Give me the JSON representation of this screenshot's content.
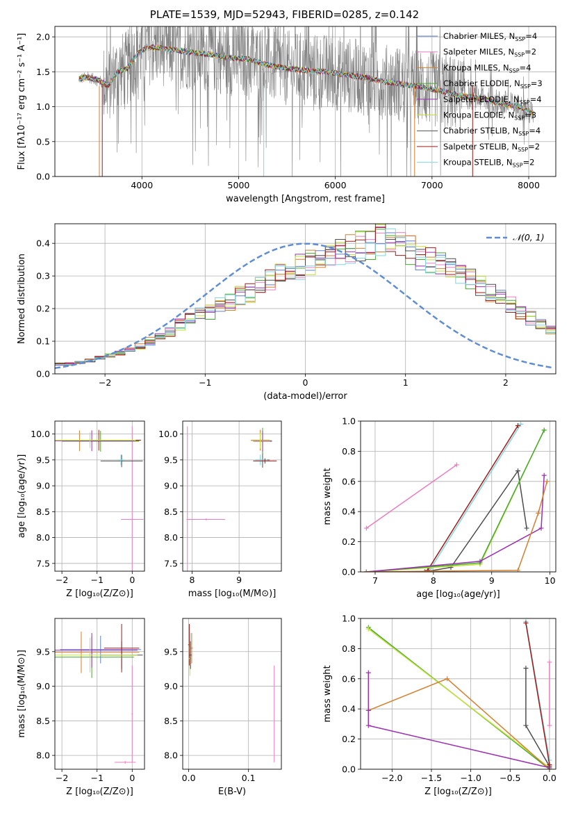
{
  "figure": {
    "title": "PLATE=1539, MJD=52943, FIBERID=0285, z=0.142"
  },
  "colors": {
    "Chabrier MILES": "#5f7fd0",
    "Salpeter MILES": "#e87fbf",
    "Kroupa MILES": "#d57f2e",
    "Chabrier ELODIE": "#44aa2e",
    "Salpeter ELODIE": "#9b2fb1",
    "Kroupa ELODIE": "#c8e03c",
    "Chabrier STELIB": "#4d4d4d",
    "Salpeter STELIB": "#a01a1a",
    "Kroupa STELIB": "#7fd6dc",
    "data": "#808080",
    "normal_curve": "#5f8dd3"
  },
  "chart_data": [
    {
      "id": "spectrum",
      "type": "line",
      "title": "PLATE=1539, MJD=52943, FIBERID=0285, z=0.142",
      "xlabel": "wavelength [Angstrom, rest frame]",
      "ylabel": "Flux [fλ10⁻¹⁷ erg cm⁻² s⁻¹ A⁻¹]",
      "xlim": [
        3100,
        8280
      ],
      "ylim": [
        0,
        2.15
      ],
      "xticks": [
        4000,
        5000,
        6000,
        7000,
        8000
      ],
      "yticks": [
        0.0,
        0.5,
        1.0,
        1.5,
        2.0
      ],
      "legend_position": "top-right",
      "legend": [
        "Chabrier MILES, N_SSP=4",
        "Salpeter MILES, N_SSP=2",
        "Kroupa MILES, N_SSP=4",
        "Chabrier ELODIE, N_SSP=3",
        "Salpeter ELODIE, N_SSP=4",
        "Kroupa ELODIE, N_SSP=3",
        "Chabrier STELIB, N_SSP=4",
        "Salpeter STELIB, N_SSP=2",
        "Kroupa STELIB, N_SSP=2"
      ],
      "model_continuum": {
        "x": [
          3350,
          3450,
          3550,
          3650,
          3750,
          3850,
          3950,
          4050,
          4150,
          4300,
          4500,
          4700,
          4900,
          5100,
          5300,
          5500,
          5700,
          5900,
          6100,
          6300,
          6500,
          6700,
          6900,
          7100,
          7300,
          7500,
          7700,
          7900,
          8050
        ],
        "y": [
          1.4,
          1.42,
          1.38,
          1.3,
          1.5,
          1.55,
          1.75,
          1.85,
          1.85,
          1.82,
          1.78,
          1.75,
          1.7,
          1.68,
          1.6,
          1.55,
          1.52,
          1.5,
          1.46,
          1.42,
          1.36,
          1.32,
          1.28,
          1.22,
          1.16,
          1.12,
          1.05,
          1.0,
          0.9
        ]
      },
      "data_x_range": [
        3350,
        8050
      ],
      "data_noise_amplitude": 0.55
    },
    {
      "id": "residuals",
      "type": "histogram",
      "xlabel": "(data-model)/error",
      "ylabel": "Normed distribution",
      "xlim": [
        -2.5,
        2.5
      ],
      "ylim": [
        0,
        0.46
      ],
      "xticks": [
        -2,
        -1,
        0,
        1,
        2
      ],
      "yticks": [
        0.0,
        0.1,
        0.2,
        0.3,
        0.4
      ],
      "legend": [
        "𝒩(0, 1)"
      ],
      "legend_position": "top-right",
      "bin_width": 0.1,
      "bin_start": -2.5,
      "envelope": [
        0.03,
        0.03,
        0.035,
        0.04,
        0.05,
        0.055,
        0.065,
        0.075,
        0.085,
        0.1,
        0.11,
        0.13,
        0.15,
        0.165,
        0.18,
        0.19,
        0.21,
        0.22,
        0.24,
        0.25,
        0.27,
        0.29,
        0.3,
        0.31,
        0.33,
        0.34,
        0.35,
        0.36,
        0.37,
        0.38,
        0.39,
        0.4,
        0.41,
        0.4,
        0.39,
        0.38,
        0.36,
        0.35,
        0.34,
        0.32,
        0.31,
        0.29,
        0.27,
        0.25,
        0.23,
        0.21,
        0.19,
        0.17,
        0.15,
        0.13
      ]
    },
    {
      "id": "age_vs_Z",
      "type": "errorbar",
      "xlabel": "Z [log₁₀(Z/Z⊙)]",
      "ylabel": "age  [log₁₀(age/yr)]",
      "xlim": [
        -2.2,
        0.35
      ],
      "ylim": [
        7.35,
        10.25
      ],
      "xticks": [
        -2,
        -1,
        0
      ],
      "yticks": [
        7.5,
        8.0,
        8.5,
        9.0,
        9.5,
        10.0
      ],
      "points": [
        {
          "series": "Salpeter MILES",
          "x": 0.0,
          "y": 8.35,
          "xerr": 0.32,
          "yerr": 1.8
        },
        {
          "series": "Chabrier STELIB",
          "x": -0.3,
          "y": 9.48,
          "xerr": 0.6,
          "yerr": 0.12
        },
        {
          "series": "Kroupa STELIB",
          "x": -0.32,
          "y": 9.5,
          "xerr": 0.1,
          "yerr": 0.1
        },
        {
          "series": "Chabrier ELODIE",
          "x": -0.9,
          "y": 9.86,
          "xerr": 1.1,
          "yerr": 0.2
        },
        {
          "series": "Kroupa MILES",
          "x": -1.5,
          "y": 9.87,
          "xerr": 1.7,
          "yerr": 0.2
        },
        {
          "series": "Salpeter STELIB",
          "x": -0.95,
          "y": 9.88,
          "xerr": 1.2,
          "yerr": 0.2
        },
        {
          "series": "Salpeter ELODIE",
          "x": -1.15,
          "y": 9.87,
          "xerr": 1.2,
          "yerr": 0.2
        },
        {
          "series": "Kroupa ELODIE",
          "x": -1.2,
          "y": 9.88,
          "xerr": 1.3,
          "yerr": 0.15
        }
      ]
    },
    {
      "id": "age_vs_mass",
      "type": "errorbar",
      "xlabel": "mass [log₁₀(M/M⊙)]",
      "ylabel": "",
      "xlim": [
        7.8,
        9.9
      ],
      "ylim": [
        7.35,
        10.25
      ],
      "xticks": [
        8,
        9
      ],
      "yticks": [
        7.5,
        8.0,
        8.5,
        9.0,
        9.5,
        10.0
      ],
      "points": [
        {
          "series": "Salpeter MILES",
          "x": 7.9,
          "y": 8.35,
          "xerr": 0.02,
          "yerr": 1.8
        },
        {
          "series": "Salpeter MILES",
          "x": 8.3,
          "y": 8.35,
          "xerr": 0.4,
          "yerr": 0.02
        },
        {
          "series": "Chabrier STELIB",
          "x": 9.5,
          "y": 9.5,
          "xerr": 0.15,
          "yerr": 0.15
        },
        {
          "series": "Kroupa STELIB",
          "x": 9.45,
          "y": 9.5,
          "xerr": 0.15,
          "yerr": 0.1
        },
        {
          "series": "Salpeter STELIB",
          "x": 9.55,
          "y": 9.48,
          "xerr": 0.25,
          "yerr": 0.05
        },
        {
          "series": "Chabrier ELODIE",
          "x": 9.5,
          "y": 9.87,
          "xerr": 0.2,
          "yerr": 0.25
        },
        {
          "series": "Kroupa MILES",
          "x": 9.45,
          "y": 9.88,
          "xerr": 0.2,
          "yerr": 0.2
        },
        {
          "series": "Salpeter ELODIE",
          "x": 9.5,
          "y": 9.86,
          "xerr": 0.2,
          "yerr": 0.2
        },
        {
          "series": "Kroupa ELODIE",
          "x": 9.45,
          "y": 9.87,
          "xerr": 0.2,
          "yerr": 0.15
        }
      ]
    },
    {
      "id": "weight_vs_age",
      "type": "line",
      "xlabel": "age  [log₁₀(age/yr)]",
      "ylabel": "mass weight",
      "xlim": [
        6.75,
        10.1
      ],
      "ylim": [
        0,
        1
      ],
      "xticks": [
        7,
        8,
        9,
        10
      ],
      "yticks": [
        0.0,
        0.2,
        0.4,
        0.6,
        0.8,
        1.0
      ],
      "series": [
        {
          "name": "Salpeter MILES",
          "x": [
            6.85,
            8.4
          ],
          "y": [
            0.29,
            0.71
          ]
        },
        {
          "name": "Kroupa STELIB",
          "x": [
            7.95,
            9.5
          ],
          "y": [
            0.02,
            0.98
          ]
        },
        {
          "name": "Salpeter STELIB",
          "x": [
            7.9,
            9.45
          ],
          "y": [
            0.01,
            0.97
          ]
        },
        {
          "name": "Chabrier STELIB",
          "x": [
            7.85,
            8.3,
            9.45,
            9.6
          ],
          "y": [
            0.0,
            0.03,
            0.67,
            0.29
          ]
        },
        {
          "name": "Kroupa ELODIE",
          "x": [
            6.85,
            8.8,
            9.9
          ],
          "y": [
            0.0,
            0.05,
            0.94
          ]
        },
        {
          "name": "Chabrier ELODIE",
          "x": [
            6.85,
            8.8,
            9.9
          ],
          "y": [
            0.0,
            0.06,
            0.94
          ]
        },
        {
          "name": "Salpeter ELODIE",
          "x": [
            6.85,
            8.8,
            9.85,
            9.9
          ],
          "y": [
            0.0,
            0.07,
            0.29,
            0.64
          ]
        },
        {
          "name": "Kroupa MILES",
          "x": [
            6.85,
            9.45,
            9.8,
            9.95
          ],
          "y": [
            0.0,
            0.01,
            0.39,
            0.6
          ]
        }
      ]
    },
    {
      "id": "mass_vs_Z",
      "type": "errorbar",
      "xlabel": "Z [log₁₀(Z/Z⊙)]",
      "ylabel": "mass [log₁₀(M/M⊙)]",
      "xlim": [
        -2.2,
        0.35
      ],
      "ylim": [
        7.8,
        9.98
      ],
      "xticks": [
        -2,
        -1,
        0
      ],
      "yticks": [
        8.0,
        8.5,
        9.0,
        9.5
      ],
      "points": [
        {
          "series": "Salpeter MILES",
          "x": 0.0,
          "y": 8.6,
          "xerr": 0.02,
          "yerr": 0.7
        },
        {
          "series": "Salpeter MILES",
          "x": -0.2,
          "y": 7.9,
          "xerr": 0.3,
          "yerr": 0.02
        },
        {
          "series": "Chabrier MILES",
          "x": -0.9,
          "y": 9.53,
          "xerr": 1.15,
          "yerr": 0.2
        },
        {
          "series": "Kroupa MILES",
          "x": -1.45,
          "y": 9.49,
          "xerr": 1.65,
          "yerr": 0.3
        },
        {
          "series": "Chabrier STELIB",
          "x": -0.3,
          "y": 9.45,
          "xerr": 0.6,
          "yerr": 0.2
        },
        {
          "series": "Salpeter STELIB",
          "x": -0.3,
          "y": 9.55,
          "xerr": 0.5,
          "yerr": 0.35
        },
        {
          "series": "Chabrier ELODIE",
          "x": -1.15,
          "y": 9.42,
          "xerr": 1.2,
          "yerr": 0.3
        },
        {
          "series": "Salpeter ELODIE",
          "x": -1.15,
          "y": 9.52,
          "xerr": 1.3,
          "yerr": 0.25
        },
        {
          "series": "Kroupa ELODIE",
          "x": -1.2,
          "y": 9.45,
          "xerr": 1.35,
          "yerr": 0.25
        }
      ]
    },
    {
      "id": "mass_vs_ebv",
      "type": "errorbar",
      "xlabel": "E(B-V)",
      "ylabel": "",
      "xlim": [
        -0.01,
        0.155
      ],
      "ylim": [
        7.8,
        9.98
      ],
      "xticks": [
        0.0,
        0.1
      ],
      "yticks": [
        8.0,
        8.5,
        9.0,
        9.5
      ],
      "points": [
        {
          "series": "Salpeter MILES",
          "x": 0.143,
          "y": 8.6,
          "xerr": 0.0,
          "yerr": 0.7
        },
        {
          "series": "Salpeter STELIB",
          "x": 0.001,
          "y": 9.6,
          "xerr": 0.002,
          "yerr": 0.3
        },
        {
          "series": "Kroupa ELODIE",
          "x": 0.002,
          "y": 9.4,
          "xerr": 0.002,
          "yerr": 0.25
        },
        {
          "series": "Kroupa STELIB",
          "x": 0.003,
          "y": 9.55,
          "xerr": 0.002,
          "yerr": 0.22
        },
        {
          "series": "Kroupa MILES",
          "x": 0.005,
          "y": 9.55,
          "xerr": 0.002,
          "yerr": 0.22
        },
        {
          "series": "Chabrier STELIB",
          "x": 0.003,
          "y": 9.45,
          "xerr": 0.002,
          "yerr": 0.2
        }
      ]
    },
    {
      "id": "weight_vs_Z",
      "type": "line",
      "xlabel": "Z [log₁₀(Z/Z⊙)]",
      "ylabel": "mass weight",
      "xlim": [
        -2.4,
        0.08
      ],
      "ylim": [
        0,
        1
      ],
      "xticks": [
        -2.0,
        -1.5,
        -1.0,
        -0.5,
        0.0
      ],
      "yticks": [
        0.0,
        0.2,
        0.4,
        0.6,
        0.8,
        1.0
      ],
      "series": [
        {
          "name": "Chabrier ELODIE",
          "x": [
            -2.3,
            0.0
          ],
          "y": [
            0.94,
            0.0
          ]
        },
        {
          "name": "Kroupa ELODIE",
          "x": [
            -2.3,
            0.0
          ],
          "y": [
            0.93,
            0.01
          ]
        },
        {
          "name": "Kroupa MILES",
          "x": [
            -2.3,
            -1.3,
            0.0
          ],
          "y": [
            0.39,
            0.6,
            0.0
          ]
        },
        {
          "name": "Salpeter ELODIE",
          "x": [
            -2.3,
            -2.3,
            -2.3,
            0.0
          ],
          "y": [
            0.64,
            0.39,
            0.29,
            0.01
          ]
        },
        {
          "name": "Chabrier STELIB",
          "x": [
            -0.3,
            -0.3,
            0.0
          ],
          "y": [
            0.67,
            0.29,
            0.02
          ]
        },
        {
          "name": "Kroupa STELIB",
          "x": [
            -0.3,
            0.0
          ],
          "y": [
            0.98,
            0.06
          ]
        },
        {
          "name": "Salpeter STELIB",
          "x": [
            -0.3,
            0.0
          ],
          "y": [
            0.97,
            0.03
          ]
        },
        {
          "name": "Salpeter MILES",
          "x": [
            0.0,
            0.0
          ],
          "y": [
            0.29,
            0.71
          ]
        }
      ]
    }
  ]
}
